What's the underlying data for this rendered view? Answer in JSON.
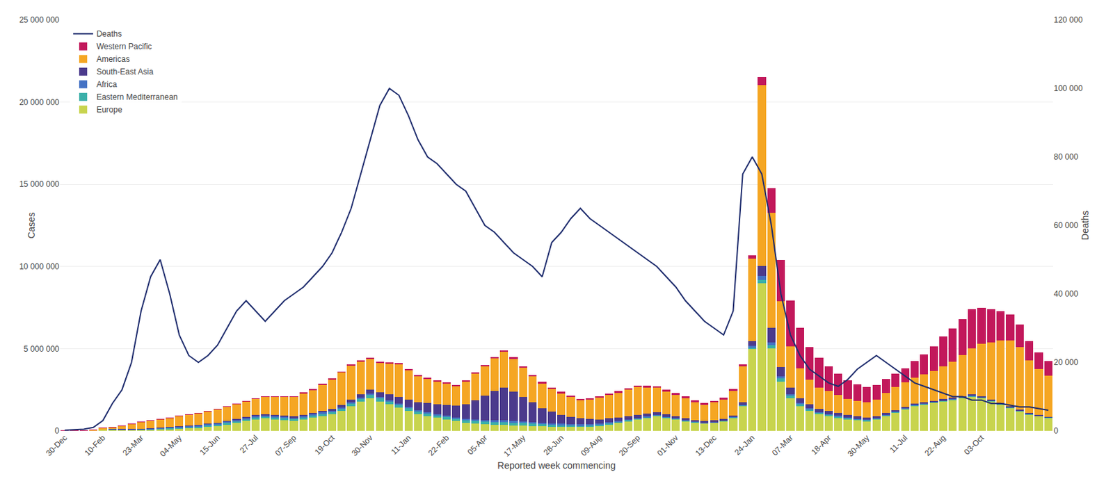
{
  "chart_data": {
    "type": "bar",
    "stacked": true,
    "grid": true,
    "legend": "upper left",
    "xlabel": "Reported week commencing",
    "ylabel": "Cases",
    "y2label": "Deaths",
    "categories": [
      "30-Dec",
      null,
      null,
      null,
      "10-Feb",
      null,
      null,
      null,
      "23-Mar",
      null,
      null,
      null,
      "04-May",
      null,
      null,
      null,
      "15-Jun",
      null,
      null,
      null,
      "27-Jul",
      null,
      null,
      null,
      "07-Sep",
      null,
      null,
      null,
      "19-Oct",
      null,
      null,
      null,
      "30-Nov",
      null,
      null,
      null,
      "11-Jan",
      null,
      null,
      null,
      "22-Feb",
      null,
      null,
      null,
      "05-Apr",
      null,
      null,
      null,
      "17-May",
      null,
      null,
      null,
      "28-Jun",
      null,
      null,
      null,
      "09-Aug",
      null,
      null,
      null,
      "20-Sep",
      null,
      null,
      null,
      "01-Nov",
      null,
      null,
      null,
      "13-Dec",
      null,
      null,
      null,
      "24-Jan",
      null,
      null,
      null,
      "07-Mar",
      null,
      null,
      null,
      "18-Apr",
      null,
      null,
      null,
      "30-May",
      null,
      null,
      null,
      "11-Jul",
      null,
      null,
      null,
      "22-Aug",
      null,
      null,
      null,
      "03-Oct",
      null,
      null,
      null,
      null,
      null,
      null,
      null
    ],
    "ylim": [
      0,
      25000000
    ],
    "yticks": [
      0,
      {
        "value": 5000000,
        "label": "5 000 000"
      },
      {
        "value": 10000000,
        "label": "10 000 000"
      },
      {
        "value": 15000000,
        "label": "15 000 000"
      },
      {
        "value": 20000000,
        "label": "20 000 000"
      },
      {
        "value": 25000000,
        "label": "25 000 000"
      }
    ],
    "y2lim": [
      0,
      120000
    ],
    "y2ticks": [
      0,
      {
        "value": 20000,
        "label": "20 000"
      },
      {
        "value": 40000,
        "label": "40 000"
      },
      {
        "value": 60000,
        "label": "60 000"
      },
      {
        "value": 80000,
        "label": "80 000"
      },
      {
        "value": 100000,
        "label": "100 000"
      },
      {
        "value": 120000,
        "label": "120 000"
      }
    ],
    "series": [
      {
        "name": "Europe",
        "type": "bar",
        "color": "#C8D44E",
        "values": [
          1000,
          2000,
          5000,
          30000,
          100000,
          80000,
          60000,
          50000,
          60000,
          80000,
          100000,
          120000,
          150000,
          180000,
          200000,
          250000,
          300000,
          400000,
          500000,
          600000,
          700000,
          750000,
          700000,
          650000,
          600000,
          700000,
          800000,
          900000,
          1000000,
          1200000,
          1500000,
          1800000,
          2000000,
          1800000,
          1600000,
          1400000,
          1200000,
          1000000,
          900000,
          800000,
          700000,
          600000,
          500000,
          450000,
          400000,
          380000,
          360000,
          340000,
          320000,
          300000,
          280000,
          260000,
          250000,
          240000,
          230000,
          250000,
          300000,
          400000,
          500000,
          600000,
          700000,
          800000,
          900000,
          800000,
          700000,
          600000,
          500000,
          450000,
          500000,
          600000,
          800000,
          1500000,
          5000000,
          9000000,
          5000000,
          3000000,
          2000000,
          1500000,
          1200000,
          1000000,
          900000,
          800000,
          700000,
          650000,
          600000,
          700000,
          900000,
          1100000,
          1300000,
          1500000,
          1600000,
          1700000,
          1800000,
          1900000,
          2000000,
          2100000,
          2000000,
          1800000,
          1600000,
          1400000,
          1200000,
          1000000,
          900000,
          800000
        ]
      },
      {
        "name": "Eastern Mediterranean",
        "type": "bar",
        "color": "#3AAFA9",
        "values": [
          200,
          500,
          2000,
          5000,
          10000,
          15000,
          20000,
          25000,
          30000,
          35000,
          40000,
          45000,
          50000,
          55000,
          60000,
          65000,
          70000,
          75000,
          80000,
          85000,
          90000,
          95000,
          100000,
          105000,
          110000,
          120000,
          130000,
          140000,
          150000,
          160000,
          170000,
          180000,
          190000,
          200000,
          210000,
          200000,
          190000,
          180000,
          170000,
          160000,
          150000,
          140000,
          130000,
          140000,
          150000,
          160000,
          170000,
          160000,
          150000,
          140000,
          130000,
          120000,
          110000,
          100000,
          90000,
          80000,
          70000,
          65000,
          60000,
          55000,
          50000,
          45000,
          40000,
          35000,
          30000,
          28000,
          26000,
          24000,
          22000,
          20000,
          25000,
          40000,
          80000,
          180000,
          200000,
          180000,
          150000,
          130000,
          110000,
          100000,
          90000,
          80000,
          75000,
          70000,
          65000,
          60000,
          55000,
          52000,
          50000,
          48000,
          46000,
          44000,
          42000,
          40000,
          38000,
          36000,
          34000,
          32000,
          30000,
          28000,
          26000,
          24000,
          22000,
          20000
        ]
      },
      {
        "name": "Africa",
        "type": "bar",
        "color": "#4472C4",
        "values": [
          100,
          200,
          500,
          2000,
          5000,
          8000,
          12000,
          18000,
          25000,
          35000,
          45000,
          55000,
          65000,
          75000,
          85000,
          90000,
          95000,
          100000,
          105000,
          110000,
          115000,
          110000,
          105000,
          100000,
          95000,
          90000,
          85000,
          80000,
          75000,
          70000,
          65000,
          60000,
          58000,
          55000,
          52000,
          50000,
          55000,
          60000,
          65000,
          70000,
          75000,
          80000,
          85000,
          90000,
          95000,
          100000,
          105000,
          100000,
          95000,
          90000,
          85000,
          80000,
          75000,
          70000,
          65000,
          60000,
          55000,
          50000,
          45000,
          40000,
          35000,
          32000,
          30000,
          28000,
          26000,
          24000,
          22000,
          20000,
          18000,
          16000,
          20000,
          35000,
          80000,
          250000,
          180000,
          120000,
          80000,
          60000,
          50000,
          42000,
          38000,
          34000,
          30000,
          28000,
          26000,
          24000,
          22000,
          20000,
          18000,
          16000,
          15000,
          14000,
          13000,
          12000,
          11000,
          10000,
          9500,
          9000,
          8500,
          8000,
          7500,
          7000,
          6500,
          6000
        ]
      },
      {
        "name": "South-East Asia",
        "type": "bar",
        "color": "#4B3A8C",
        "values": [
          500,
          800,
          1000,
          2000,
          5000,
          8000,
          12000,
          15000,
          18000,
          20000,
          22000,
          25000,
          28000,
          30000,
          32000,
          35000,
          38000,
          40000,
          45000,
          50000,
          55000,
          60000,
          65000,
          70000,
          75000,
          80000,
          90000,
          100000,
          120000,
          140000,
          160000,
          200000,
          250000,
          300000,
          350000,
          400000,
          450000,
          500000,
          550000,
          600000,
          650000,
          700000,
          900000,
          1200000,
          1500000,
          1800000,
          2000000,
          1800000,
          1500000,
          1200000,
          900000,
          700000,
          550000,
          450000,
          380000,
          320000,
          280000,
          250000,
          220000,
          200000,
          180000,
          160000,
          150000,
          140000,
          130000,
          120000,
          110000,
          100000,
          90000,
          80000,
          100000,
          150000,
          300000,
          600000,
          900000,
          600000,
          400000,
          300000,
          250000,
          200000,
          180000,
          160000,
          150000,
          140000,
          130000,
          120000,
          110000,
          100000,
          95000,
          90000,
          85000,
          80000,
          75000,
          70000,
          65000,
          60000,
          58000,
          55000,
          52000,
          50000,
          48000,
          46000,
          44000,
          42000
        ]
      },
      {
        "name": "Americas",
        "type": "bar",
        "color": "#F5A623",
        "values": [
          5000,
          8000,
          12000,
          30000,
          80000,
          120000,
          200000,
          300000,
          400000,
          450000,
          500000,
          550000,
          600000,
          650000,
          700000,
          750000,
          800000,
          850000,
          900000,
          950000,
          1000000,
          1050000,
          1100000,
          1150000,
          1200000,
          1300000,
          1400000,
          1600000,
          1800000,
          2000000,
          2100000,
          2000000,
          1900000,
          1800000,
          1900000,
          2000000,
          1800000,
          1600000,
          1500000,
          1400000,
          1300000,
          1200000,
          1400000,
          1600000,
          1800000,
          2000000,
          2200000,
          2000000,
          1800000,
          1600000,
          1500000,
          1400000,
          1300000,
          1200000,
          1100000,
          1200000,
          1300000,
          1400000,
          1500000,
          1600000,
          1700000,
          1600000,
          1500000,
          1400000,
          1300000,
          1200000,
          1100000,
          1000000,
          1100000,
          1200000,
          1500000,
          2200000,
          5000000,
          11000000,
          7000000,
          4000000,
          2500000,
          1800000,
          1500000,
          1300000,
          1200000,
          1100000,
          1000000,
          950000,
          900000,
          1000000,
          1200000,
          1400000,
          1500000,
          1600000,
          1700000,
          1800000,
          2000000,
          2200000,
          2500000,
          2800000,
          3200000,
          3500000,
          3800000,
          4000000,
          3800000,
          3200000,
          2800000,
          2500000
        ]
      },
      {
        "name": "Western Pacific",
        "type": "bar",
        "color": "#C2185B",
        "values": [
          500,
          800,
          1000,
          1500,
          2000,
          2500,
          3000,
          3500,
          4000,
          4500,
          5000,
          5500,
          6000,
          7000,
          8000,
          9000,
          10000,
          11000,
          12000,
          13000,
          14000,
          15000,
          16000,
          17000,
          18000,
          20000,
          22000,
          25000,
          28000,
          30000,
          32000,
          35000,
          38000,
          40000,
          42000,
          44000,
          46000,
          48000,
          50000,
          52000,
          55000,
          58000,
          60000,
          62000,
          65000,
          68000,
          70000,
          72000,
          75000,
          78000,
          80000,
          82000,
          85000,
          88000,
          90000,
          92000,
          95000,
          98000,
          100000,
          102000,
          105000,
          108000,
          110000,
          112000,
          115000,
          118000,
          120000,
          115000,
          110000,
          105000,
          100000,
          120000,
          200000,
          500000,
          1500000,
          2500000,
          2800000,
          2500000,
          2000000,
          1800000,
          1500000,
          1300000,
          1100000,
          1000000,
          950000,
          900000,
          850000,
          800000,
          850000,
          1000000,
          1200000,
          1500000,
          1800000,
          2000000,
          2200000,
          2400000,
          2200000,
          2000000,
          1800000,
          1600000,
          1400000,
          1200000,
          1000000,
          900000
        ]
      },
      {
        "name": "Deaths",
        "type": "line",
        "axis": "y2",
        "color": "#1F2D6E",
        "values": [
          200,
          300,
          500,
          1000,
          3000,
          8000,
          12000,
          20000,
          35000,
          45000,
          50000,
          40000,
          28000,
          22000,
          20000,
          22000,
          25000,
          30000,
          35000,
          38000,
          35000,
          32000,
          35000,
          38000,
          40000,
          42000,
          45000,
          48000,
          52000,
          58000,
          65000,
          75000,
          85000,
          95000,
          100000,
          98000,
          92000,
          85000,
          80000,
          78000,
          75000,
          72000,
          70000,
          65000,
          60000,
          58000,
          55000,
          52000,
          50000,
          48000,
          45000,
          55000,
          58000,
          62000,
          65000,
          62000,
          60000,
          58000,
          56000,
          54000,
          52000,
          50000,
          48000,
          45000,
          42000,
          38000,
          35000,
          32000,
          30000,
          28000,
          35000,
          75000,
          80000,
          75000,
          60000,
          40000,
          28000,
          22000,
          18000,
          16000,
          14000,
          13000,
          15000,
          18000,
          20000,
          22000,
          20000,
          18000,
          16000,
          14000,
          13000,
          12000,
          11000,
          10000,
          10000,
          9000,
          9000,
          8000,
          8000,
          7500,
          7000,
          7000,
          6500,
          6000
        ]
      }
    ]
  }
}
